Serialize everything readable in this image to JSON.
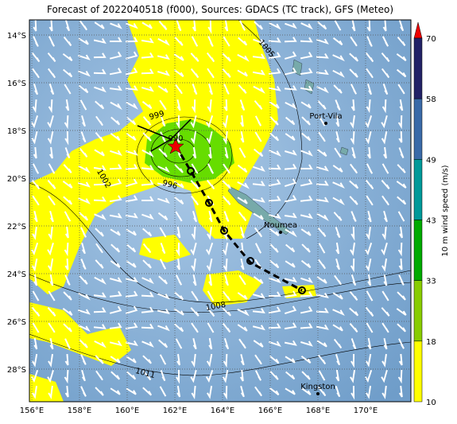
{
  "title": "Forecast of 2022040518 (f000), Sources: GDACS (TC track), GFS (Meteo)",
  "lat_labels": [
    "14°S",
    "16°S",
    "18°S",
    "20°S",
    "22°S",
    "24°S",
    "26°S",
    "28°S"
  ],
  "lon_labels": [
    "156°E",
    "158°E",
    "160°E",
    "162°E",
    "164°E",
    "166°E",
    "168°E",
    "170°E"
  ],
  "places": [
    "Port-Vila",
    "Noumea",
    "Kingston"
  ],
  "isobar_labels": [
    "1005",
    "999",
    "990",
    "996",
    "1002",
    "1008",
    "1011"
  ],
  "colorbar": {
    "label": "10 m wind speed (m/s)",
    "ticks": [
      "70",
      "58",
      "49",
      "43",
      "33",
      "18",
      "10"
    ]
  }
}
